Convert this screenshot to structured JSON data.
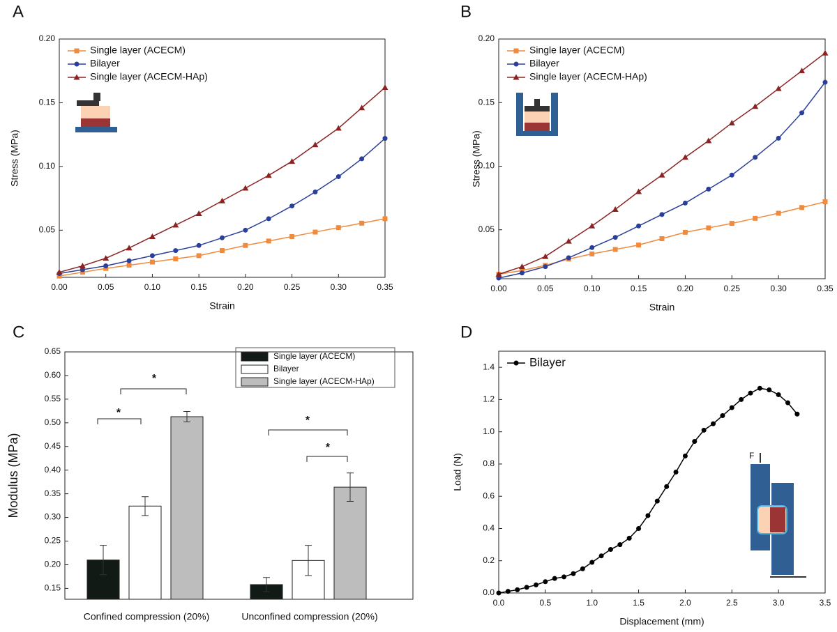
{
  "chart_data": [
    {
      "type": "line",
      "panel_label": "A",
      "xlabel": "Strain",
      "ylabel": "Stress (MPa)",
      "x": [
        0,
        0.025,
        0.05,
        0.075,
        0.1,
        0.125,
        0.15,
        0.175,
        0.2,
        0.225,
        0.25,
        0.275,
        0.3,
        0.325,
        0.35
      ],
      "series": [
        {
          "name": "Single layer (ACECM)",
          "color": "#f08a3c",
          "marker": "square",
          "values": [
            0.014,
            0.017,
            0.02,
            0.0225,
            0.025,
            0.0275,
            0.03,
            0.034,
            0.038,
            0.0415,
            0.045,
            0.0485,
            0.052,
            0.0555,
            0.059
          ]
        },
        {
          "name": "Bilayer",
          "color": "#2a3f9a",
          "marker": "circle",
          "values": [
            0.016,
            0.019,
            0.022,
            0.026,
            0.03,
            0.034,
            0.038,
            0.044,
            0.05,
            0.059,
            0.069,
            0.08,
            0.092,
            0.106,
            0.122
          ]
        },
        {
          "name": "Single layer (ACECM-HAp)",
          "color": "#8b2323",
          "marker": "triangle",
          "values": [
            0.017,
            0.022,
            0.028,
            0.036,
            0.045,
            0.054,
            0.063,
            0.073,
            0.083,
            0.093,
            0.104,
            0.117,
            0.13,
            0.146,
            0.162
          ]
        }
      ],
      "xlim": [
        0,
        0.35
      ],
      "ylim": [
        0.013,
        0.2
      ],
      "xticks": [
        {
          "value": 0,
          "label": "0.00"
        },
        {
          "value": 0.05,
          "label": "0.05"
        },
        {
          "value": 0.1,
          "label": "0.10"
        },
        {
          "value": 0.15,
          "label": "0.15"
        },
        {
          "value": 0.2,
          "label": "0.20"
        },
        {
          "value": 0.25,
          "label": "0.25"
        },
        {
          "value": 0.3,
          "label": "0.30"
        },
        {
          "value": 0.35,
          "label": "0.35"
        }
      ],
      "yticks": [
        {
          "value": 0.05,
          "label": "0.05"
        },
        {
          "value": 0.1,
          "label": "0.10"
        },
        {
          "value": 0.15,
          "label": "0.15"
        },
        {
          "value": 0.2,
          "label": "0.20"
        }
      ],
      "legend": "upper left"
    },
    {
      "type": "line",
      "panel_label": "B",
      "xlabel": "Strain",
      "ylabel": "Stress (MPa)",
      "x": [
        0,
        0.025,
        0.05,
        0.075,
        0.1,
        0.125,
        0.15,
        0.175,
        0.2,
        0.225,
        0.25,
        0.275,
        0.3,
        0.325,
        0.35
      ],
      "series": [
        {
          "name": "Single layer (ACECM)",
          "color": "#f08a3c",
          "marker": "square",
          "values": [
            0.015,
            0.018,
            0.022,
            0.027,
            0.031,
            0.0345,
            0.038,
            0.043,
            0.048,
            0.0515,
            0.055,
            0.059,
            0.063,
            0.0675,
            0.072
          ]
        },
        {
          "name": "Bilayer",
          "color": "#2a3f9a",
          "marker": "circle",
          "values": [
            0.012,
            0.016,
            0.021,
            0.028,
            0.036,
            0.044,
            0.053,
            0.062,
            0.071,
            0.082,
            0.093,
            0.107,
            0.122,
            0.142,
            0.166
          ]
        },
        {
          "name": "Single layer (ACECM-HAp)",
          "color": "#8b2323",
          "marker": "triangle",
          "values": [
            0.015,
            0.021,
            0.029,
            0.041,
            0.053,
            0.066,
            0.08,
            0.093,
            0.107,
            0.12,
            0.134,
            0.147,
            0.161,
            0.175,
            0.189
          ]
        }
      ],
      "xlim": [
        0,
        0.35
      ],
      "ylim": [
        0.0115,
        0.2
      ],
      "xticks": [
        {
          "value": 0,
          "label": "0.00"
        },
        {
          "value": 0.05,
          "label": "0.05"
        },
        {
          "value": 0.1,
          "label": "0.10"
        },
        {
          "value": 0.15,
          "label": "0.15"
        },
        {
          "value": 0.2,
          "label": "0.20"
        },
        {
          "value": 0.25,
          "label": "0.25"
        },
        {
          "value": 0.3,
          "label": "0.30"
        },
        {
          "value": 0.35,
          "label": "0.35"
        }
      ],
      "yticks": [
        {
          "value": 0.05,
          "label": "0.05"
        },
        {
          "value": 0.1,
          "label": "0.10"
        },
        {
          "value": 0.15,
          "label": "0.15"
        },
        {
          "value": 0.2,
          "label": "0.20"
        }
      ],
      "legend": "upper left"
    },
    {
      "type": "bar",
      "panel_label": "C",
      "ylabel": "Modulus (MPa)",
      "categories": [
        "Confined compression (20%)",
        "Unconfined compression (20%)"
      ],
      "series": [
        {
          "name": "Single layer (ACECM)",
          "color": "#111a14",
          "values": [
            0.21,
            0.158
          ],
          "errors": [
            0.031,
            0.015
          ]
        },
        {
          "name": "Bilayer",
          "color": "#ffffff",
          "values": [
            0.324,
            0.209
          ],
          "errors": [
            0.02,
            0.032
          ]
        },
        {
          "name": "Single layer (ACECM-HAp)",
          "color": "#bdbdbd",
          "values": [
            0.513,
            0.364
          ],
          "errors": [
            0.011,
            0.03
          ]
        }
      ],
      "ylim": [
        0.127,
        0.65
      ],
      "yticks": [
        {
          "value": 0.15,
          "label": "0.15"
        },
        {
          "value": 0.2,
          "label": "0.20"
        },
        {
          "value": 0.25,
          "label": "0.25"
        },
        {
          "value": 0.3,
          "label": "0.30"
        },
        {
          "value": 0.35,
          "label": "0.35"
        },
        {
          "value": 0.4,
          "label": "0.40"
        },
        {
          "value": 0.45,
          "label": "0.45"
        },
        {
          "value": 0.5,
          "label": "0.50"
        },
        {
          "value": 0.55,
          "label": "0.55"
        },
        {
          "value": 0.6,
          "label": "0.60"
        },
        {
          "value": 0.65,
          "label": "0.65"
        }
      ],
      "annotations": [
        "*",
        "*",
        "*",
        "*"
      ],
      "legend": "upper right"
    },
    {
      "type": "line",
      "panel_label": "D",
      "xlabel": "Displacement (mm)",
      "ylabel": "Load (N)",
      "inset_label": "F",
      "x": [
        0,
        0.1,
        0.2,
        0.3,
        0.4,
        0.5,
        0.6,
        0.7,
        0.8,
        0.9,
        1.0,
        1.1,
        1.2,
        1.3,
        1.4,
        1.5,
        1.6,
        1.7,
        1.8,
        1.9,
        2.0,
        2.1,
        2.2,
        2.3,
        2.4,
        2.5,
        2.6,
        2.7,
        2.8,
        2.9,
        3.0,
        3.1,
        3.2
      ],
      "series": [
        {
          "name": "Bilayer",
          "color": "#000000",
          "marker": "circle",
          "values": [
            0,
            0.01,
            0.02,
            0.035,
            0.05,
            0.07,
            0.09,
            0.1,
            0.12,
            0.15,
            0.19,
            0.23,
            0.27,
            0.3,
            0.34,
            0.4,
            0.48,
            0.57,
            0.66,
            0.75,
            0.85,
            0.94,
            1.01,
            1.05,
            1.1,
            1.15,
            1.2,
            1.24,
            1.27,
            1.26,
            1.23,
            1.18,
            1.11
          ]
        }
      ],
      "xlim": [
        0,
        3.5
      ],
      "ylim": [
        0,
        1.5
      ],
      "xticks": [
        {
          "value": 0,
          "label": "0.0"
        },
        {
          "value": 0.5,
          "label": "0.5"
        },
        {
          "value": 1,
          "label": "1.0"
        },
        {
          "value": 1.5,
          "label": "1.5"
        },
        {
          "value": 2,
          "label": "2.0"
        },
        {
          "value": 2.5,
          "label": "2.5"
        },
        {
          "value": 3,
          "label": "3.0"
        },
        {
          "value": 3.5,
          "label": "3.5"
        }
      ],
      "yticks": [
        {
          "value": 0,
          "label": "0.0"
        },
        {
          "value": 0.2,
          "label": "0.2"
        },
        {
          "value": 0.4,
          "label": "0.4"
        },
        {
          "value": 0.6,
          "label": "0.6"
        },
        {
          "value": 0.8,
          "label": "0.8"
        },
        {
          "value": 1,
          "label": "1.0"
        },
        {
          "value": 1.2,
          "label": "1.2"
        },
        {
          "value": 1.4,
          "label": "1.4"
        }
      ],
      "legend": "upper left"
    }
  ]
}
